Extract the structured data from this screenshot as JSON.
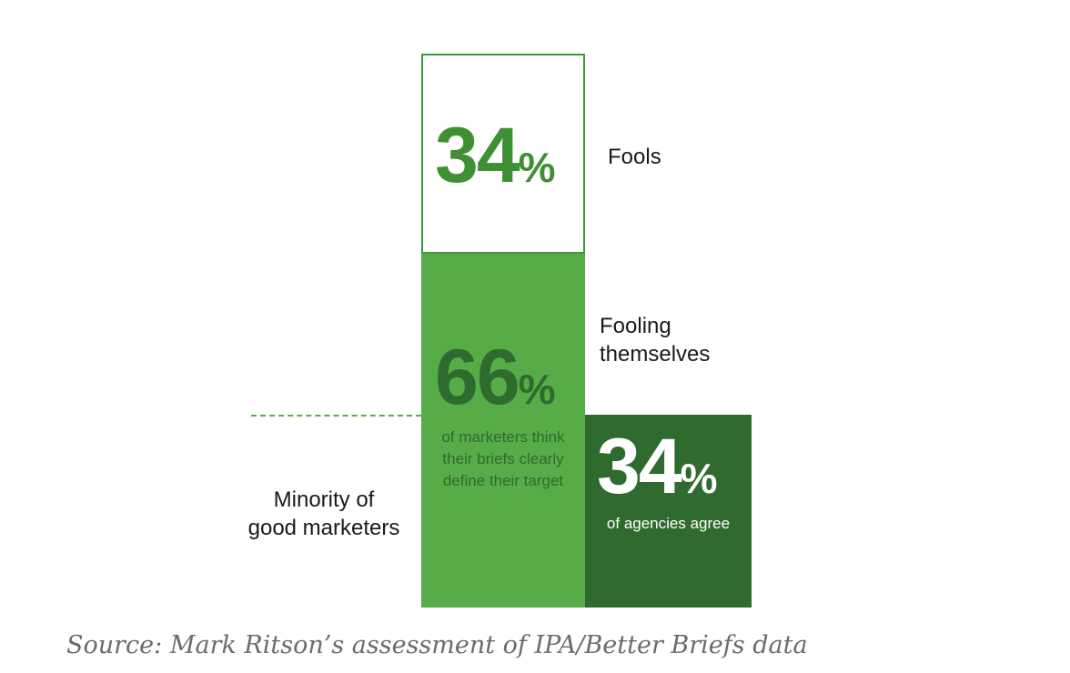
{
  "colors": {
    "outline": "#3a9a3a",
    "mid_green": "#56ad47",
    "dark_green": "#2f6a2f"
  },
  "blocks": {
    "fools": {
      "value": "34",
      "unit": "%",
      "label": "Fools"
    },
    "fooling": {
      "value": "66",
      "unit": "%",
      "label_lines": [
        "Fooling",
        "themselves"
      ],
      "description_lines": [
        "of marketers think",
        "their briefs clearly",
        "define their target"
      ]
    },
    "agencies": {
      "value": "34",
      "unit": "%",
      "description": "of agencies agree"
    }
  },
  "minority_label_lines": [
    "Minority of",
    "good marketers"
  ],
  "source": "Source: Mark Ritson’s assessment of IPA/Better Briefs data"
}
